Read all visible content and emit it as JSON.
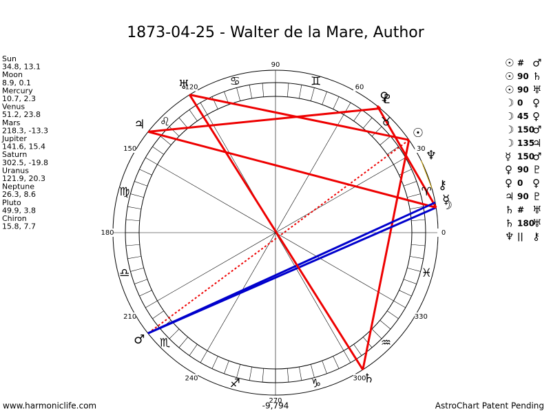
{
  "title": "1873-04-25 - Walter de la Mare, Author",
  "planets": [
    {
      "name": "Sun",
      "glyph": "☉",
      "coords": "34.8, 13.1"
    },
    {
      "name": "Moon",
      "glyph": "☽",
      "coords": "8.9, 0.1"
    },
    {
      "name": "Mercury",
      "glyph": "☿",
      "coords": "10.7, 2.3"
    },
    {
      "name": "Venus",
      "glyph": "♀",
      "coords": "51.2, 23.8"
    },
    {
      "name": "Mars",
      "glyph": "♂",
      "coords": "218.3, -13.3"
    },
    {
      "name": "Jupiter",
      "glyph": "♃",
      "coords": "141.6, 15.4"
    },
    {
      "name": "Saturn",
      "glyph": "♄",
      "coords": "302.5, -19.8"
    },
    {
      "name": "Uranus",
      "glyph": "♅",
      "coords": "121.9, 20.3"
    },
    {
      "name": "Neptune",
      "glyph": "♆",
      "coords": "26.3, 8.6"
    },
    {
      "name": "Pluto",
      "glyph": "♇",
      "coords": "49.9, 3.8"
    },
    {
      "name": "Chiron",
      "glyph": "⚷",
      "coords": "15.8, 7.7"
    }
  ],
  "signs": [
    "♈",
    "♉",
    "♊",
    "♋",
    "♌",
    "♍",
    "♎",
    "♏",
    "♐",
    "♑",
    "♒",
    "♓"
  ],
  "degree_labels": [
    0,
    30,
    60,
    90,
    120,
    150,
    180,
    210,
    240,
    270,
    300,
    330
  ],
  "aspects": [
    [
      "☉",
      "#",
      "♂"
    ],
    [
      "☉",
      "90",
      "♄"
    ],
    [
      "☉",
      "90",
      "♅"
    ],
    [
      "☽",
      "0",
      "♀"
    ],
    [
      "☽",
      "45",
      "♀"
    ],
    [
      "☽",
      "150",
      "♂"
    ],
    [
      "☽",
      "135",
      "♃"
    ],
    [
      "☿",
      "150",
      "♂"
    ],
    [
      "♀",
      "90",
      "♇"
    ],
    [
      "♀",
      "0",
      "♀"
    ],
    [
      "♃",
      "90",
      "♇"
    ],
    [
      "♄",
      "#",
      "♅"
    ],
    [
      "♄",
      "180",
      "♅"
    ],
    [
      "♆",
      "||",
      "⚷"
    ]
  ],
  "footer": {
    "left": "www.harmoniclife.com",
    "center": "-9,794",
    "right": "AstroChart Patent Pending"
  }
}
